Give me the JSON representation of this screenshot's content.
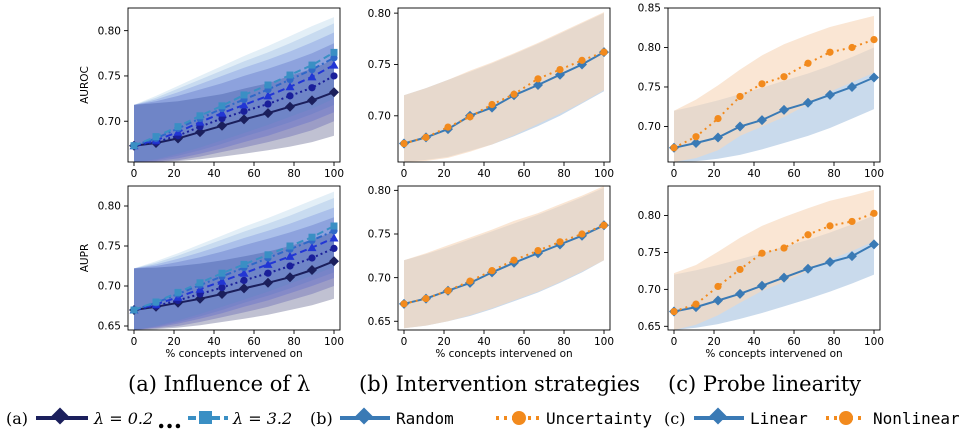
{
  "captions": {
    "a": "(a) Influence of λ",
    "b": "(b) Intervention strategies",
    "c": "(c) Probe linearity"
  },
  "legend": {
    "a_tag": "(a)",
    "lambda_first": "λ = 0.2",
    "ellipsis": "...",
    "lambda_last": "λ = 3.2",
    "b_tag": "(b)",
    "random": "Random",
    "uncertainty": "Uncertainty",
    "c_tag": "(c)",
    "linear": "Linear",
    "nonlinear": "Nonlinear"
  },
  "colors": {
    "lambda": [
      "#1b1f5c",
      "#1a1f9a",
      "#2236d4",
      "#2f68c8",
      "#3a8fc4"
    ],
    "blue": "#3a7ab5",
    "orange": "#f28a1d",
    "blue_band": "#b7cde6",
    "orange_band": "#f7d8bd"
  },
  "chart_data": [
    {
      "id": "a-auroc",
      "type": "line",
      "ylabel": "AUROC",
      "xlabel": "",
      "xlim": [
        -3,
        103
      ],
      "ylim": [
        0.655,
        0.825
      ],
      "xticks": [
        0,
        20,
        40,
        60,
        80,
        100
      ],
      "yticks": [
        0.65,
        0.7,
        0.75,
        0.8
      ],
      "x": [
        0,
        11,
        22,
        33,
        44,
        55,
        67,
        78,
        89,
        100
      ],
      "series": [
        {
          "style": "lam0",
          "values": [
            0.673,
            0.676,
            0.681,
            0.688,
            0.695,
            0.702,
            0.709,
            0.716,
            0.723,
            0.732
          ],
          "band_lo": [
            0.655,
            0.655,
            0.656,
            0.658,
            0.661,
            0.664,
            0.668,
            0.672,
            0.677,
            0.684
          ],
          "band_hi": [
            0.718,
            0.72,
            0.722,
            0.726,
            0.73,
            0.736,
            0.742,
            0.75,
            0.758,
            0.768
          ]
        },
        {
          "style": "lam1",
          "values": [
            0.673,
            0.677,
            0.684,
            0.694,
            0.703,
            0.711,
            0.719,
            0.728,
            0.737,
            0.75
          ],
          "band_lo": [
            0.655,
            0.655,
            0.657,
            0.661,
            0.666,
            0.671,
            0.677,
            0.683,
            0.69,
            0.7
          ],
          "band_hi": [
            0.718,
            0.722,
            0.728,
            0.735,
            0.742,
            0.75,
            0.758,
            0.766,
            0.775,
            0.786
          ]
        },
        {
          "style": "lam2",
          "values": [
            0.673,
            0.679,
            0.688,
            0.699,
            0.709,
            0.718,
            0.728,
            0.738,
            0.749,
            0.762
          ],
          "band_lo": [
            0.655,
            0.656,
            0.659,
            0.664,
            0.67,
            0.677,
            0.684,
            0.692,
            0.7,
            0.71
          ],
          "band_hi": [
            0.718,
            0.724,
            0.732,
            0.741,
            0.75,
            0.759,
            0.768,
            0.777,
            0.787,
            0.798
          ]
        },
        {
          "style": "lam3",
          "values": [
            0.673,
            0.681,
            0.692,
            0.703,
            0.714,
            0.724,
            0.735,
            0.746,
            0.757,
            0.77
          ],
          "band_lo": [
            0.655,
            0.657,
            0.662,
            0.668,
            0.675,
            0.683,
            0.691,
            0.699,
            0.708,
            0.718
          ],
          "band_hi": [
            0.718,
            0.726,
            0.736,
            0.746,
            0.756,
            0.766,
            0.776,
            0.786,
            0.797,
            0.808
          ]
        },
        {
          "style": "lam4",
          "values": [
            0.673,
            0.683,
            0.694,
            0.706,
            0.717,
            0.729,
            0.74,
            0.751,
            0.762,
            0.776
          ],
          "band_lo": [
            0.655,
            0.658,
            0.664,
            0.671,
            0.679,
            0.687,
            0.696,
            0.705,
            0.714,
            0.725
          ],
          "band_hi": [
            0.718,
            0.728,
            0.739,
            0.75,
            0.761,
            0.772,
            0.783,
            0.794,
            0.805,
            0.815
          ]
        }
      ]
    },
    {
      "id": "b-auroc",
      "type": "line",
      "ylabel": "",
      "xlabel": "",
      "xlim": [
        -3,
        103
      ],
      "ylim": [
        0.655,
        0.805
      ],
      "xticks": [
        0,
        20,
        40,
        60,
        80,
        100
      ],
      "yticks": [
        0.65,
        0.7,
        0.75,
        0.8
      ],
      "x": [
        0,
        11,
        22,
        33,
        44,
        55,
        67,
        78,
        89,
        100
      ],
      "series": [
        {
          "style": "blue",
          "values": [
            0.673,
            0.679,
            0.687,
            0.7,
            0.708,
            0.72,
            0.73,
            0.74,
            0.75,
            0.762
          ],
          "band_lo": [
            0.655,
            0.657,
            0.66,
            0.666,
            0.672,
            0.68,
            0.69,
            0.7,
            0.712,
            0.724
          ],
          "band_hi": [
            0.72,
            0.727,
            0.735,
            0.743,
            0.751,
            0.76,
            0.77,
            0.78,
            0.79,
            0.8
          ]
        },
        {
          "style": "orange",
          "values": [
            0.673,
            0.679,
            0.689,
            0.699,
            0.711,
            0.721,
            0.736,
            0.745,
            0.754,
            0.762
          ],
          "band_lo": [
            0.655,
            0.656,
            0.659,
            0.665,
            0.672,
            0.681,
            0.692,
            0.702,
            0.713,
            0.725
          ],
          "band_hi": [
            0.72,
            0.727,
            0.735,
            0.744,
            0.752,
            0.761,
            0.771,
            0.781,
            0.791,
            0.801
          ]
        }
      ]
    },
    {
      "id": "c-auroc",
      "type": "line",
      "ylabel": "",
      "xlabel": "",
      "xlim": [
        -3,
        103
      ],
      "ylim": [
        0.655,
        0.85
      ],
      "xticks": [
        0,
        20,
        40,
        60,
        80,
        100
      ],
      "yticks": [
        0.65,
        0.7,
        0.75,
        0.8,
        0.85
      ],
      "x": [
        0,
        11,
        22,
        33,
        44,
        55,
        67,
        78,
        89,
        100
      ],
      "series": [
        {
          "style": "blue",
          "values": [
            0.673,
            0.679,
            0.686,
            0.7,
            0.708,
            0.721,
            0.73,
            0.74,
            0.75,
            0.762
          ],
          "band_lo": [
            0.655,
            0.656,
            0.659,
            0.664,
            0.671,
            0.679,
            0.688,
            0.698,
            0.71,
            0.722
          ],
          "band_hi": [
            0.72,
            0.726,
            0.733,
            0.741,
            0.749,
            0.758,
            0.767,
            0.777,
            0.788,
            0.8
          ]
        },
        {
          "style": "orange",
          "values": [
            0.673,
            0.687,
            0.71,
            0.738,
            0.754,
            0.763,
            0.78,
            0.794,
            0.8,
            0.81
          ],
          "band_lo": [
            0.655,
            0.66,
            0.67,
            0.688,
            0.7,
            0.712,
            0.728,
            0.744,
            0.756,
            0.768
          ],
          "band_hi": [
            0.72,
            0.734,
            0.752,
            0.772,
            0.79,
            0.804,
            0.816,
            0.826,
            0.833,
            0.84
          ]
        }
      ]
    },
    {
      "id": "a-aupr",
      "type": "line",
      "ylabel": "AUPR",
      "xlabel": "% concepts intervened on",
      "xlim": [
        -3,
        103
      ],
      "ylim": [
        0.645,
        0.825
      ],
      "xticks": [
        0,
        20,
        40,
        60,
        80,
        100
      ],
      "yticks": [
        0.65,
        0.7,
        0.75,
        0.8
      ],
      "x": [
        0,
        11,
        22,
        33,
        44,
        55,
        67,
        78,
        89,
        100
      ],
      "series": [
        {
          "style": "lam0",
          "values": [
            0.67,
            0.674,
            0.679,
            0.684,
            0.69,
            0.697,
            0.704,
            0.711,
            0.72,
            0.731
          ],
          "band_lo": [
            0.645,
            0.646,
            0.648,
            0.651,
            0.655,
            0.659,
            0.664,
            0.67,
            0.676,
            0.684
          ],
          "band_hi": [
            0.722,
            0.723,
            0.725,
            0.728,
            0.732,
            0.737,
            0.743,
            0.75,
            0.758,
            0.768
          ]
        },
        {
          "style": "lam1",
          "values": [
            0.67,
            0.675,
            0.682,
            0.69,
            0.698,
            0.707,
            0.716,
            0.725,
            0.735,
            0.747
          ],
          "band_lo": [
            0.645,
            0.647,
            0.65,
            0.655,
            0.661,
            0.667,
            0.674,
            0.682,
            0.69,
            0.7
          ],
          "band_hi": [
            0.722,
            0.725,
            0.73,
            0.736,
            0.743,
            0.751,
            0.759,
            0.767,
            0.776,
            0.786
          ]
        },
        {
          "style": "lam2",
          "values": [
            0.67,
            0.677,
            0.686,
            0.696,
            0.706,
            0.716,
            0.727,
            0.737,
            0.748,
            0.76
          ],
          "band_lo": [
            0.645,
            0.648,
            0.653,
            0.659,
            0.666,
            0.674,
            0.682,
            0.691,
            0.7,
            0.71
          ],
          "band_hi": [
            0.722,
            0.727,
            0.734,
            0.742,
            0.751,
            0.76,
            0.769,
            0.778,
            0.788,
            0.798
          ]
        },
        {
          "style": "lam3",
          "values": [
            0.67,
            0.679,
            0.69,
            0.701,
            0.712,
            0.723,
            0.735,
            0.746,
            0.757,
            0.769
          ],
          "band_lo": [
            0.645,
            0.649,
            0.655,
            0.662,
            0.67,
            0.679,
            0.688,
            0.697,
            0.707,
            0.717
          ],
          "band_hi": [
            0.722,
            0.729,
            0.738,
            0.748,
            0.758,
            0.768,
            0.778,
            0.788,
            0.799,
            0.81
          ]
        },
        {
          "style": "lam4",
          "values": [
            0.67,
            0.68,
            0.692,
            0.704,
            0.716,
            0.727,
            0.739,
            0.75,
            0.761,
            0.775
          ],
          "band_lo": [
            0.645,
            0.65,
            0.657,
            0.665,
            0.674,
            0.683,
            0.693,
            0.703,
            0.713,
            0.724
          ],
          "band_hi": [
            0.722,
            0.731,
            0.741,
            0.752,
            0.763,
            0.774,
            0.785,
            0.796,
            0.807,
            0.818
          ]
        }
      ]
    },
    {
      "id": "b-aupr",
      "type": "line",
      "ylabel": "",
      "xlabel": "% concepts intervened on",
      "xlim": [
        -3,
        103
      ],
      "ylim": [
        0.64,
        0.805
      ],
      "xticks": [
        0,
        20,
        40,
        60,
        80,
        100
      ],
      "yticks": [
        0.65,
        0.7,
        0.75,
        0.8
      ],
      "x": [
        0,
        11,
        22,
        33,
        44,
        55,
        67,
        78,
        89,
        100
      ],
      "series": [
        {
          "style": "blue",
          "values": [
            0.67,
            0.676,
            0.685,
            0.694,
            0.706,
            0.717,
            0.728,
            0.738,
            0.748,
            0.76
          ],
          "band_lo": [
            0.642,
            0.645,
            0.65,
            0.656,
            0.664,
            0.673,
            0.683,
            0.694,
            0.706,
            0.72
          ],
          "band_hi": [
            0.72,
            0.727,
            0.735,
            0.744,
            0.753,
            0.762,
            0.772,
            0.782,
            0.792,
            0.803
          ]
        },
        {
          "style": "orange",
          "values": [
            0.67,
            0.676,
            0.685,
            0.696,
            0.708,
            0.72,
            0.731,
            0.741,
            0.75,
            0.76
          ],
          "band_lo": [
            0.642,
            0.645,
            0.65,
            0.657,
            0.665,
            0.674,
            0.684,
            0.695,
            0.707,
            0.72
          ],
          "band_hi": [
            0.72,
            0.728,
            0.737,
            0.746,
            0.755,
            0.765,
            0.774,
            0.784,
            0.794,
            0.805
          ]
        }
      ]
    },
    {
      "id": "c-aupr",
      "type": "line",
      "ylabel": "",
      "xlabel": "% concepts intervened on",
      "xlim": [
        -3,
        103
      ],
      "ylim": [
        0.645,
        0.84
      ],
      "xticks": [
        0,
        20,
        40,
        60,
        80,
        100
      ],
      "yticks": [
        0.65,
        0.7,
        0.75,
        0.8
      ],
      "x": [
        0,
        11,
        22,
        33,
        44,
        55,
        67,
        78,
        89,
        100
      ],
      "series": [
        {
          "style": "blue",
          "values": [
            0.67,
            0.676,
            0.685,
            0.694,
            0.705,
            0.716,
            0.728,
            0.737,
            0.745,
            0.761
          ],
          "band_lo": [
            0.645,
            0.648,
            0.653,
            0.66,
            0.668,
            0.677,
            0.687,
            0.697,
            0.708,
            0.72
          ],
          "band_hi": [
            0.72,
            0.726,
            0.733,
            0.741,
            0.749,
            0.758,
            0.767,
            0.777,
            0.788,
            0.8
          ]
        },
        {
          "style": "orange",
          "values": [
            0.67,
            0.68,
            0.704,
            0.727,
            0.749,
            0.756,
            0.774,
            0.786,
            0.792,
            0.803
          ],
          "band_lo": [
            0.645,
            0.652,
            0.665,
            0.682,
            0.698,
            0.71,
            0.725,
            0.74,
            0.752,
            0.765
          ],
          "band_hi": [
            0.722,
            0.733,
            0.751,
            0.77,
            0.786,
            0.798,
            0.81,
            0.82,
            0.827,
            0.835
          ]
        }
      ]
    }
  ]
}
